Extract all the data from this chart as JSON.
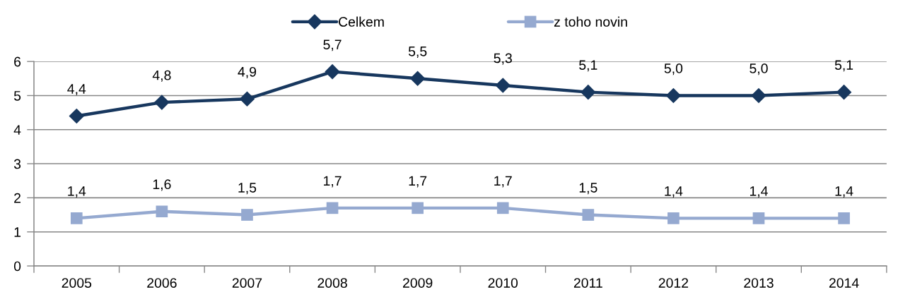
{
  "chart_data": {
    "type": "line",
    "categories": [
      "2005",
      "2006",
      "2007",
      "2008",
      "2009",
      "2010",
      "2011",
      "2012",
      "2013",
      "2014"
    ],
    "series": [
      {
        "name": "Celkem",
        "color": "#17375e",
        "marker": "diamond",
        "values": [
          4.4,
          4.8,
          4.9,
          5.7,
          5.5,
          5.3,
          5.1,
          5.0,
          5.0,
          5.1
        ],
        "value_labels": [
          "4,4",
          "4,8",
          "4,9",
          "5,7",
          "5,5",
          "5,3",
          "5,1",
          "5,0",
          "5,0",
          "5,1"
        ]
      },
      {
        "name": "z toho novin",
        "color": "#95a9d0",
        "marker": "square",
        "values": [
          1.4,
          1.6,
          1.5,
          1.7,
          1.7,
          1.7,
          1.5,
          1.4,
          1.4,
          1.4
        ],
        "value_labels": [
          "1,4",
          "1,6",
          "1,5",
          "1,7",
          "1,7",
          "1,7",
          "1,5",
          "1,4",
          "1,4",
          "1,4"
        ]
      }
    ],
    "ylim": [
      0,
      6
    ],
    "yticks": [
      0,
      1,
      2,
      3,
      4,
      5,
      6
    ],
    "grid": "y",
    "legend": "top",
    "line_style": "solid"
  }
}
